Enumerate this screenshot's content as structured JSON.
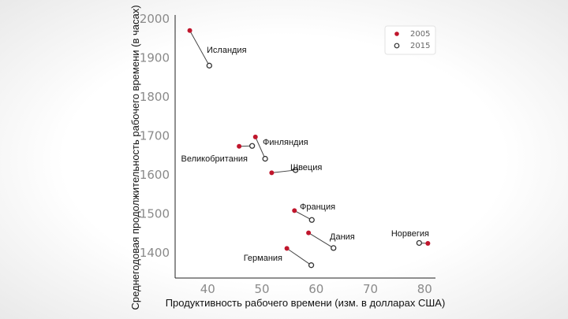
{
  "chart_data": {
    "type": "scatter",
    "xlabel": "Продуктивность рабочего времени (изм. в долларах США)",
    "ylabel": "Среднегодовая продолжительность рабочего времени (в часах)",
    "xlim": [
      34,
      82
    ],
    "ylim": [
      1335,
      2010
    ],
    "xticks": [
      "40",
      "50",
      "60",
      "70",
      "80"
    ],
    "yticks": [
      "1400",
      "1500",
      "1600",
      "1700",
      "1800",
      "1900",
      "2000"
    ],
    "legend_position": "top-right",
    "series": [
      {
        "name": "2005",
        "color": "#c0162c",
        "marker": "filled-circle"
      },
      {
        "name": "2015",
        "color": "#333333",
        "marker": "hollow-circle"
      }
    ],
    "points": [
      {
        "label": "Исландия",
        "x2005": 36.7,
        "y2005": 1970,
        "x2015": 40.3,
        "y2015": 1880
      },
      {
        "label": "Финляндия",
        "x2005": 48.8,
        "y2005": 1697,
        "x2015": 50.6,
        "y2015": 1641
      },
      {
        "label": "Великобритания",
        "x2005": 45.8,
        "y2005": 1673,
        "x2015": 48.2,
        "y2015": 1674
      },
      {
        "label": "Швеция",
        "x2005": 51.8,
        "y2005": 1605,
        "x2015": 56.2,
        "y2015": 1612
      },
      {
        "label": "Франция",
        "x2005": 56.0,
        "y2005": 1508,
        "x2015": 59.2,
        "y2015": 1484
      },
      {
        "label": "Дания",
        "x2005": 58.6,
        "y2005": 1451,
        "x2015": 63.2,
        "y2015": 1412
      },
      {
        "label": "Германия",
        "x2005": 54.6,
        "y2005": 1411,
        "x2015": 59.1,
        "y2015": 1368
      },
      {
        "label": "Норвегия",
        "x2005": 80.6,
        "y2005": 1424,
        "x2015": 79.0,
        "y2015": 1425
      }
    ]
  }
}
